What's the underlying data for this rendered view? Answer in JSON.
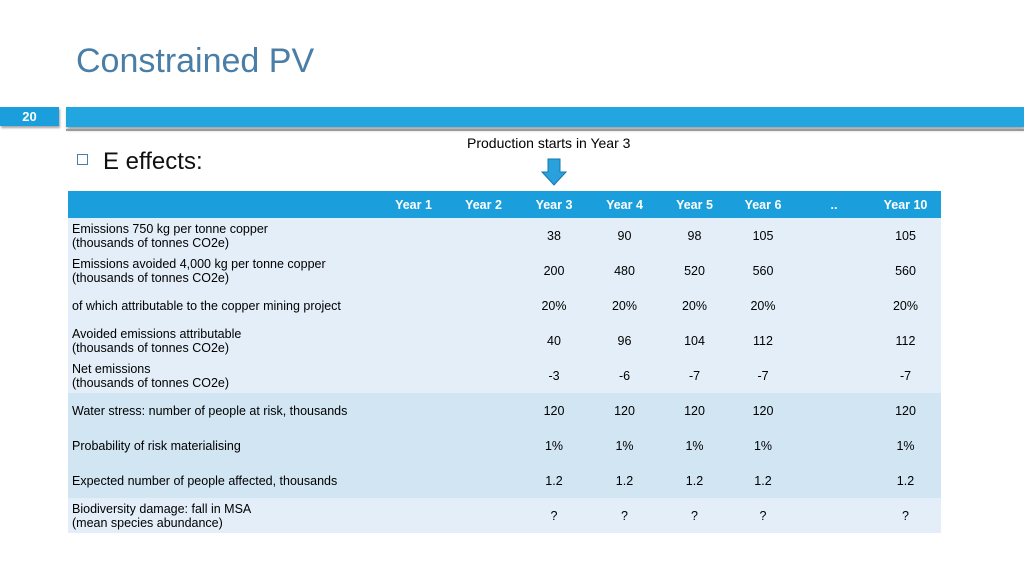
{
  "slide": {
    "title": "Constrained PV",
    "number": "20",
    "bullet": "E effects:",
    "annotation": "Production starts in Year 3"
  },
  "colors": {
    "title": "#4a7ea7",
    "accent": "#1a9fdc",
    "row_light": "#e3eef8",
    "row_mid": "#d1e5f3"
  },
  "icons": {
    "arrow": "down-arrow-icon",
    "bullet": "square-bullet-icon"
  },
  "table": {
    "headers": [
      "",
      "Year 1",
      "Year 2",
      "Year 3",
      "Year 4",
      "Year 5",
      "Year 6",
      "..",
      "Year 10"
    ],
    "rows": [
      {
        "label_1": "Emissions 750 kg per tonne copper",
        "label_2": "(thousands of tonnes CO2e)",
        "values": [
          "",
          "",
          "38",
          "90",
          "98",
          "105",
          "",
          "105"
        ]
      },
      {
        "label_1": "Emissions avoided 4,000 kg per tonne copper",
        "label_2": "(thousands of tonnes CO2e)",
        "values": [
          "",
          "",
          "200",
          "480",
          "520",
          "560",
          "",
          "560"
        ]
      },
      {
        "label_1": "of which attributable to the copper mining project",
        "label_2": "",
        "values": [
          "",
          "",
          "20%",
          "20%",
          "20%",
          "20%",
          "",
          "20%"
        ]
      },
      {
        "label_1": "Avoided emissions attributable",
        "label_2": "(thousands of tonnes CO2e)",
        "values": [
          "",
          "",
          "40",
          "96",
          "104",
          "112",
          "",
          "112"
        ]
      },
      {
        "label_1": "Net emissions",
        "label_2": "(thousands of tonnes CO2e)",
        "values": [
          "",
          "",
          "-3",
          "-6",
          "-7",
          "-7",
          "",
          "-7"
        ]
      },
      {
        "label_1": "Water stress: number of people at risk, thousands",
        "label_2": "",
        "values": [
          "",
          "",
          "120",
          "120",
          "120",
          "120",
          "",
          "120"
        ]
      },
      {
        "label_1": "Probability of risk materialising",
        "label_2": "",
        "values": [
          "",
          "",
          "1%",
          "1%",
          "1%",
          "1%",
          "",
          "1%"
        ]
      },
      {
        "label_1": "Expected number of people affected, thousands",
        "label_2": "",
        "values": [
          "",
          "",
          "1.2",
          "1.2",
          "1.2",
          "1.2",
          "",
          "1.2"
        ]
      },
      {
        "label_1": "Biodiversity damage: fall in MSA",
        "label_2": "(mean species abundance)",
        "values": [
          "",
          "",
          "?",
          "?",
          "?",
          "?",
          "",
          "?"
        ]
      }
    ]
  }
}
